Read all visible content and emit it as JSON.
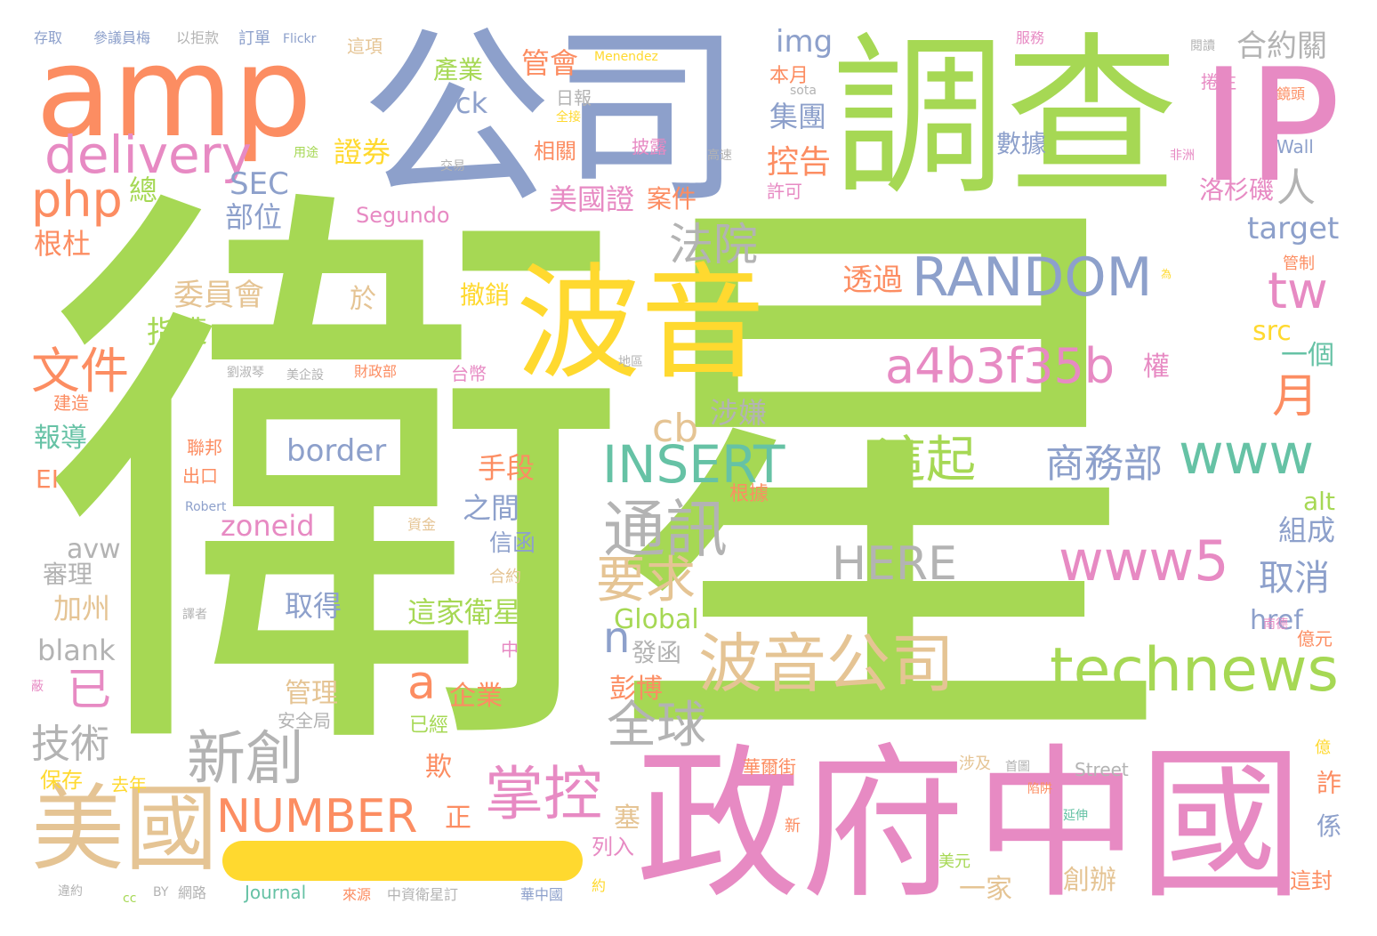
{
  "colors": {
    "green": "#a6d854",
    "orange": "#fc8d62",
    "blue": "#8da0cb",
    "pink": "#e78ac3",
    "yellow": "#ffd92f",
    "tan": "#e5c494",
    "gray": "#b3b3b3",
    "teal": "#66c2a5"
  },
  "words": [
    "衛星",
    "公司",
    "調查",
    "IP",
    "amp",
    "政府",
    "中國",
    "波音",
    "美國",
    "technews",
    "波音公司",
    "RANDOM",
    "a4b3f35b",
    "delivery",
    "php",
    "文件",
    "INSERT",
    "www5",
    "www",
    "通訊",
    "這起",
    "tw",
    "商務部",
    "法院",
    "掌控",
    "NUMBER",
    "新創",
    "全球",
    "要求",
    "HERE",
    "border",
    "技術",
    "已",
    "a",
    "n",
    "月",
    "cb",
    "人",
    "SEC",
    "zoneid",
    "取消",
    "合約關",
    "img",
    "證券",
    "控告",
    "集團",
    "管會",
    "產業",
    "ck",
    "數據",
    "target",
    "洛杉磯",
    "委員會",
    "指遭",
    "部位",
    "根杜",
    "總",
    "美國證",
    "案件",
    "Segundo",
    "透過",
    "於",
    "撤銷",
    "src",
    "一個",
    "權",
    "報導",
    "EI",
    "涉嫌",
    "手段",
    "之間",
    "信函",
    "組成",
    "alt",
    "avw",
    "審理",
    "加州",
    "blank",
    "取得",
    "這家衛星",
    "Global",
    "發函",
    "href",
    "管理",
    "企業",
    "彭博",
    "技術",
    "已經",
    "安全局",
    "保存",
    "去年",
    "欺",
    "正",
    "塞",
    "詐",
    "係",
    "列入",
    "一家",
    "創辦",
    "這封",
    "Journal",
    "Street",
    "華爾街",
    "本月",
    "相關",
    "日報",
    "交易",
    "高速",
    "許可",
    "披露",
    "地區",
    "財政部",
    "美企設",
    "劉淑琴",
    "台幣",
    "建造",
    "聯邦",
    "出口",
    "Robert",
    "資金",
    "合約",
    "中",
    "億元",
    "億",
    "涉及",
    "首圖",
    "新",
    "美元",
    "約",
    "網路",
    "BY",
    "cc",
    "違約",
    "來源",
    "中資衛星訂",
    "華中國",
    "延伸",
    "陷阱",
    "蔽",
    "譯者",
    "用途",
    "全接",
    "sota",
    "Wall",
    "非洲",
    "管制",
    "為",
    "捲注",
    "鏡頭",
    "閱讀",
    "服務",
    "Menendez",
    "存取",
    "參議員梅",
    "以拒款",
    "訂單",
    "Flickr",
    "這項",
    "南德",
    "根據"
  ]
}
